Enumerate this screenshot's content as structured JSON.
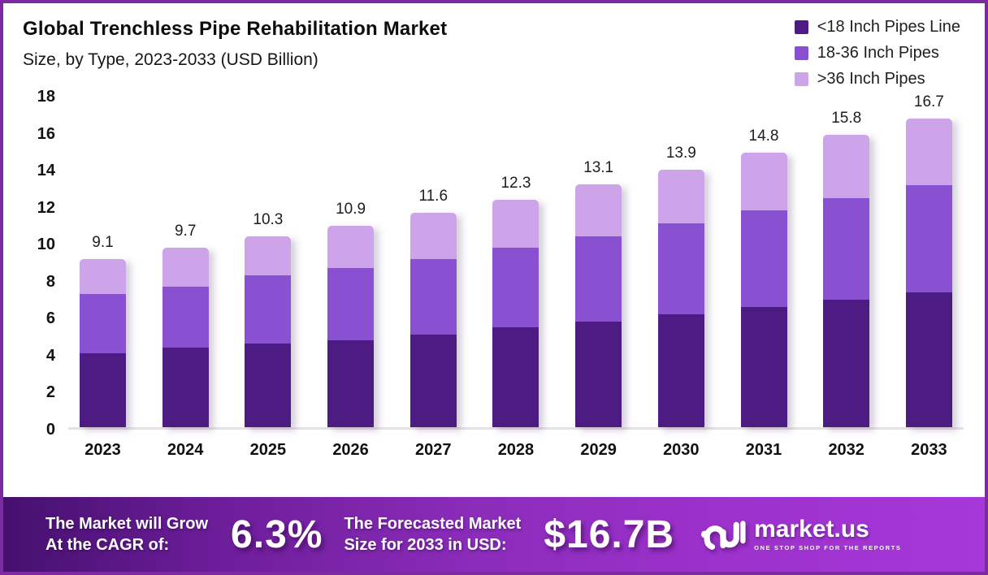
{
  "header": {
    "title": "Global Trenchless Pipe Rehabilitation Market",
    "subtitle": "Size, by Type, 2023-2033 (USD Billion)"
  },
  "chart_data": {
    "type": "bar",
    "stacked": true,
    "title": "Global Trenchless Pipe Rehabilitation Market Size, by Type, 2023-2033 (USD Billion)",
    "categories": [
      "2023",
      "2024",
      "2025",
      "2026",
      "2027",
      "2028",
      "2029",
      "2030",
      "2031",
      "2032",
      "2033"
    ],
    "series": [
      {
        "name": "<18 Inch Pipes Line",
        "color": "#4c1c82",
        "values": [
          4.0,
          4.3,
          4.5,
          4.7,
          5.0,
          5.4,
          5.7,
          6.1,
          6.5,
          6.9,
          7.3
        ]
      },
      {
        "name": "18-36 Inch Pipes",
        "color": "#8951d1",
        "values": [
          3.2,
          3.3,
          3.7,
          3.9,
          4.1,
          4.3,
          4.6,
          4.9,
          5.2,
          5.5,
          5.8
        ]
      },
      {
        "name": ">36 Inch Pipes",
        "color": "#cda4ea",
        "values": [
          1.9,
          2.1,
          2.1,
          2.3,
          2.5,
          2.6,
          2.8,
          2.9,
          3.1,
          3.4,
          3.6
        ]
      }
    ],
    "totals": [
      9.1,
      9.7,
      10.3,
      10.9,
      11.6,
      12.3,
      13.1,
      13.9,
      14.8,
      15.8,
      16.7
    ],
    "yticks": [
      0,
      2,
      4,
      6,
      8,
      10,
      12,
      14,
      16,
      18
    ],
    "ylim": [
      0,
      18
    ],
    "xlabel": "",
    "ylabel": "",
    "grid": false,
    "legend_position": "top-right"
  },
  "footer": {
    "cagr_label_line1": "The Market will Grow",
    "cagr_label_line2": "At the CAGR of:",
    "cagr_value": "6.3%",
    "forecast_label_line1": "The Forecasted Market",
    "forecast_label_line2": "Size for 2033 in USD:",
    "forecast_value": "$16.7B",
    "brand_name": "market.us",
    "brand_tagline": "ONE STOP SHOP FOR THE REPORTS"
  }
}
